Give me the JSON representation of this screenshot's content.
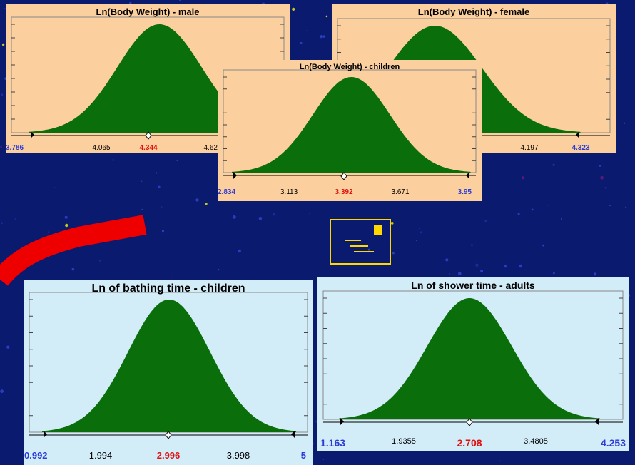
{
  "colors": {
    "peach": "#fccf9e",
    "lightblue": "#d2ecf8",
    "fill": "#0a6e0a",
    "background": "#0a1a6e",
    "accent_red": "#e01010",
    "accent_blue": "#2a3bd6"
  },
  "chart_data": [
    {
      "type": "area",
      "title": "Ln(Body Weight) - male",
      "ticks": [
        "3.786",
        "4.065",
        "4.344",
        "4.623"
      ],
      "xlim": [
        3.786,
        4.902
      ],
      "mean": 4.344,
      "color": "#0a6e0a"
    },
    {
      "type": "area",
      "title": "Ln(Body Weight) - female",
      "ticks": [
        "4.197",
        "4.323"
      ],
      "mean": null,
      "color": "#0a6e0a"
    },
    {
      "type": "area",
      "title": "Ln(Body Weight) - children",
      "ticks": [
        "2.834",
        "3.113",
        "3.392",
        "3.671",
        "3.95"
      ],
      "xlim": [
        2.834,
        3.95
      ],
      "mean": 3.392,
      "color": "#0a6e0a"
    },
    {
      "type": "area",
      "title": "Ln of bathing time - children",
      "ticks": [
        "0.992",
        "1.994",
        "2.996",
        "3.998",
        "5"
      ],
      "xlim": [
        0.992,
        5
      ],
      "mean": 2.996,
      "color": "#0a6e0a"
    },
    {
      "type": "area",
      "title": "Ln of shower time - adults",
      "ticks": [
        "1.163",
        "1.9355",
        "2.708",
        "3.4805",
        "4.253"
      ],
      "xlim": [
        1.163,
        4.253
      ],
      "mean": 2.708,
      "color": "#0a6e0a"
    }
  ]
}
